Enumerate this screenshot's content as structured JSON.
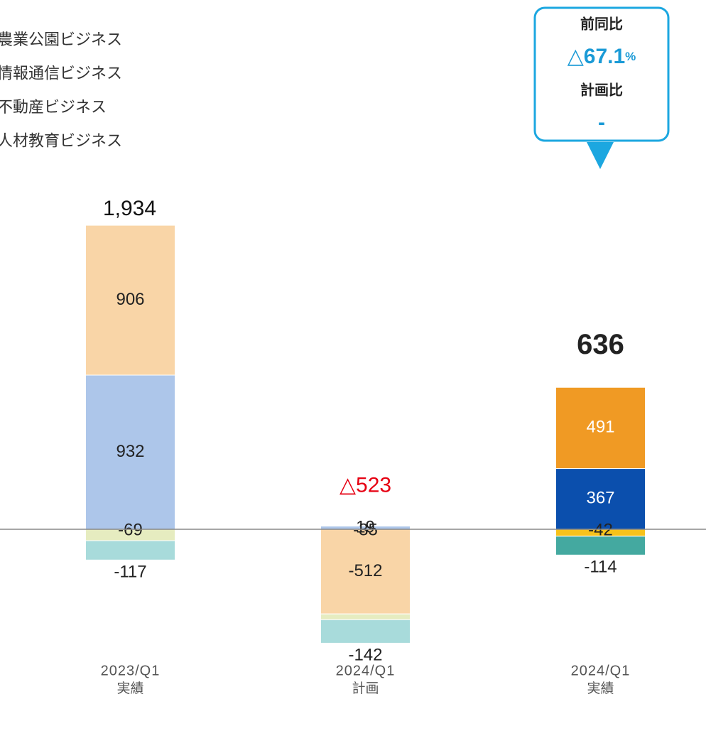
{
  "chart_data": {
    "type": "stacked-bar",
    "categories": [
      "2023/Q1",
      "2024/Q1",
      "2024/Q1"
    ],
    "category_sublabels": [
      "実績",
      "計画",
      "実績"
    ],
    "series": [
      {
        "name": "農業公園ビジネス",
        "colors": [
          "#f9d5a7",
          "#f9d5a7",
          "#f09a24"
        ],
        "values": [
          906,
          -512,
          491
        ]
      },
      {
        "name": "情報通信ビジネス",
        "colors": [
          "#adc6ea",
          "#adc6ea",
          "#0b4fad"
        ],
        "values": [
          932,
          19,
          367
        ]
      },
      {
        "name": "不動産ビジネス",
        "colors": [
          "#e6ecc0",
          "#e6ecc0",
          "#f7c21b"
        ],
        "values": [
          -69,
          -35,
          -42
        ]
      },
      {
        "name": "人材教育ビジネス",
        "colors": [
          "#a8dbdb",
          "#a8dbdb",
          "#44a9a0"
        ],
        "values": [
          -117,
          -142,
          -114
        ]
      }
    ],
    "totals": {
      "values": [
        1934,
        -523,
        636
      ],
      "value_labels": [
        "1,934",
        "△523",
        "636"
      ],
      "colors": [
        "#111111",
        "#e60012",
        "#222222"
      ]
    },
    "ylim": [
      -1250,
      3200
    ],
    "callout": {
      "yoy_title": "前同比",
      "yoy_value": "△67.1",
      "yoy_unit": "%",
      "plan_title": "計画比",
      "plan_value": "-"
    }
  }
}
